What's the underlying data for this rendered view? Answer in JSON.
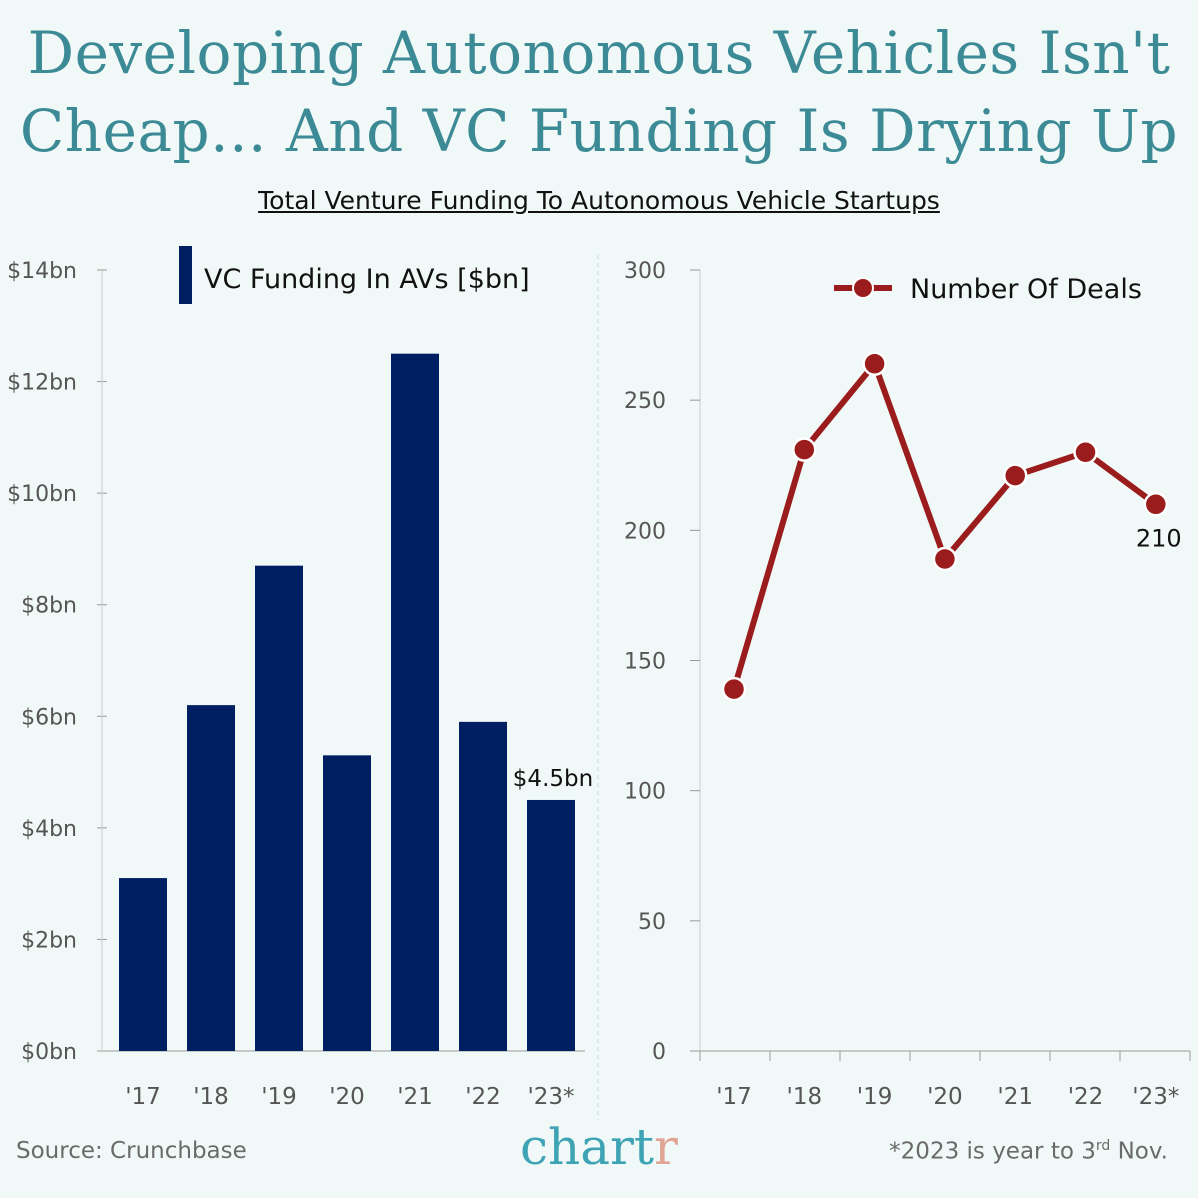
{
  "title_line1": "Developing Autonomous Vehicles Isn't",
  "title_line2": "Cheap... And VC Funding Is Drying Up",
  "subtitle": "Total Venture Funding To Autonomous Vehicle Startups",
  "source": "Source: Crunchbase",
  "logo": {
    "main": "chart",
    "accent": "r"
  },
  "footnote": {
    "pre": "*2023 is year to 3",
    "sup": "rd",
    "post": " Nov."
  },
  "colors": {
    "background": "#f1f9f8",
    "bars": "#001f63",
    "line": "#9b1c1c",
    "title": "#3b8a95"
  },
  "chart_data": [
    {
      "type": "bar",
      "categories": [
        "'17",
        "'18",
        "'19",
        "'20",
        "'21",
        "'22",
        "'23*"
      ],
      "series": [
        {
          "name": "VC Funding In AVs [$bn]",
          "values": [
            3.1,
            6.2,
            8.7,
            5.3,
            12.5,
            5.9,
            4.5
          ]
        }
      ],
      "ylim": [
        0,
        14
      ],
      "yticks": [
        0,
        2,
        4,
        6,
        8,
        10,
        12,
        14
      ],
      "ytick_labels": [
        "$0bn",
        "$2bn",
        "$4bn",
        "$6bn",
        "$8bn",
        "$10bn",
        "$12bn",
        "$14bn"
      ],
      "annotations": [
        {
          "category": "'23*",
          "text": "$4.5bn"
        }
      ],
      "legend": "top",
      "grid": false
    },
    {
      "type": "line",
      "categories": [
        "'17",
        "'18",
        "'19",
        "'20",
        "'21",
        "'22",
        "'23*"
      ],
      "series": [
        {
          "name": "Number Of Deals",
          "values": [
            139,
            231,
            264,
            189,
            221,
            230,
            210
          ]
        }
      ],
      "ylim": [
        0,
        300
      ],
      "yticks": [
        0,
        50,
        100,
        150,
        200,
        250,
        300
      ],
      "ytick_labels": [
        "0",
        "50",
        "100",
        "150",
        "200",
        "250",
        "300"
      ],
      "annotations": [
        {
          "category": "'23*",
          "text": "210"
        }
      ],
      "legend": "top-right",
      "grid": false
    }
  ]
}
